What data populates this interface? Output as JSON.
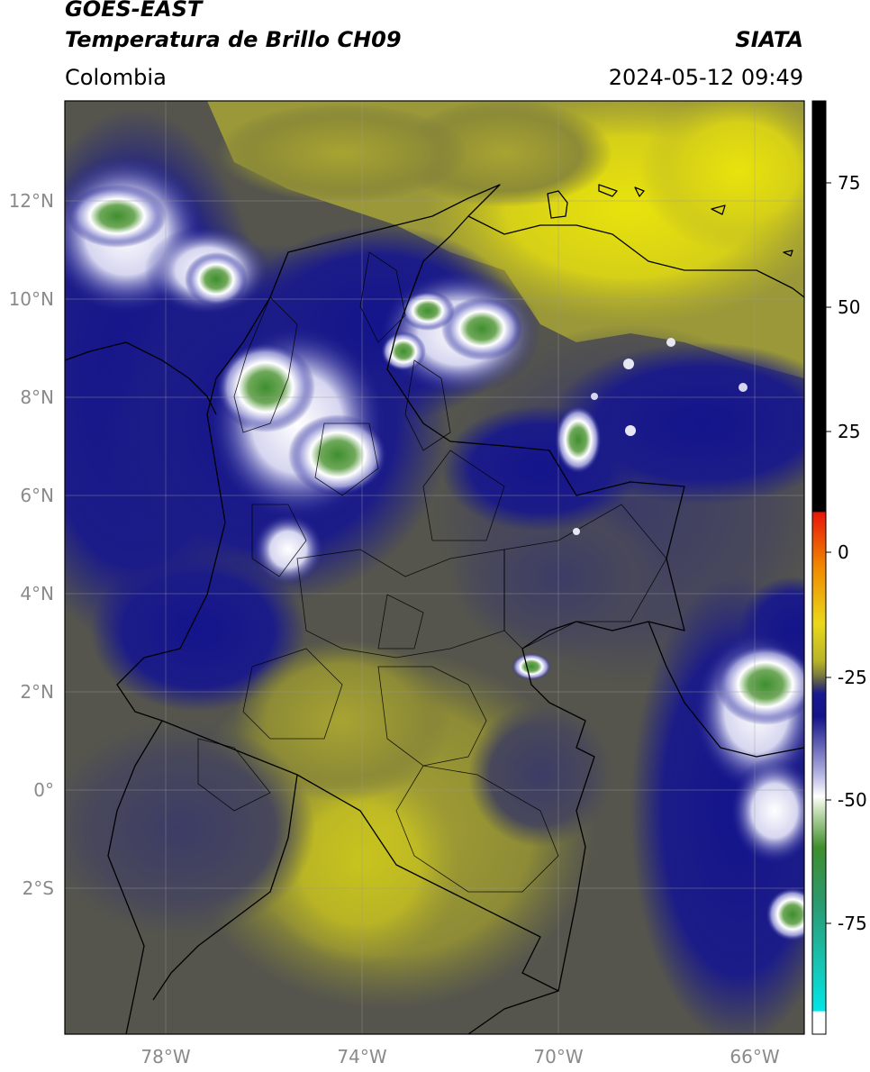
{
  "header": {
    "satellite": "GOES-EAST",
    "product": "Temperatura de Brillo CH09",
    "agency": "SIATA",
    "region": "Colombia",
    "datetime": "2024-05-12 09:49"
  },
  "map": {
    "lat_ticks": [
      "12°N",
      "10°N",
      "8°N",
      "6°N",
      "4°N",
      "2°N",
      "0°",
      "2°S"
    ],
    "lon_ticks": [
      "78°W",
      "74°W",
      "70°W",
      "66°W"
    ],
    "lon_range": [
      -80,
      -65
    ],
    "lat_range": [
      -5,
      14
    ]
  },
  "colorbar": {
    "ticks": [
      "75",
      "50",
      "25",
      "0",
      "-25",
      "-50",
      "-75"
    ],
    "colors": {
      "black": "#000000",
      "red": "#e8160a",
      "orange": "#f08a00",
      "yellow": "#e4e10c",
      "olive": "#8b8b30",
      "gray": "#4a4a58",
      "navy": "#13138c",
      "white": "#ffffff",
      "green": "#3a8a2a",
      "teal": "#20b8a0",
      "cyan": "#00e0e0"
    }
  }
}
